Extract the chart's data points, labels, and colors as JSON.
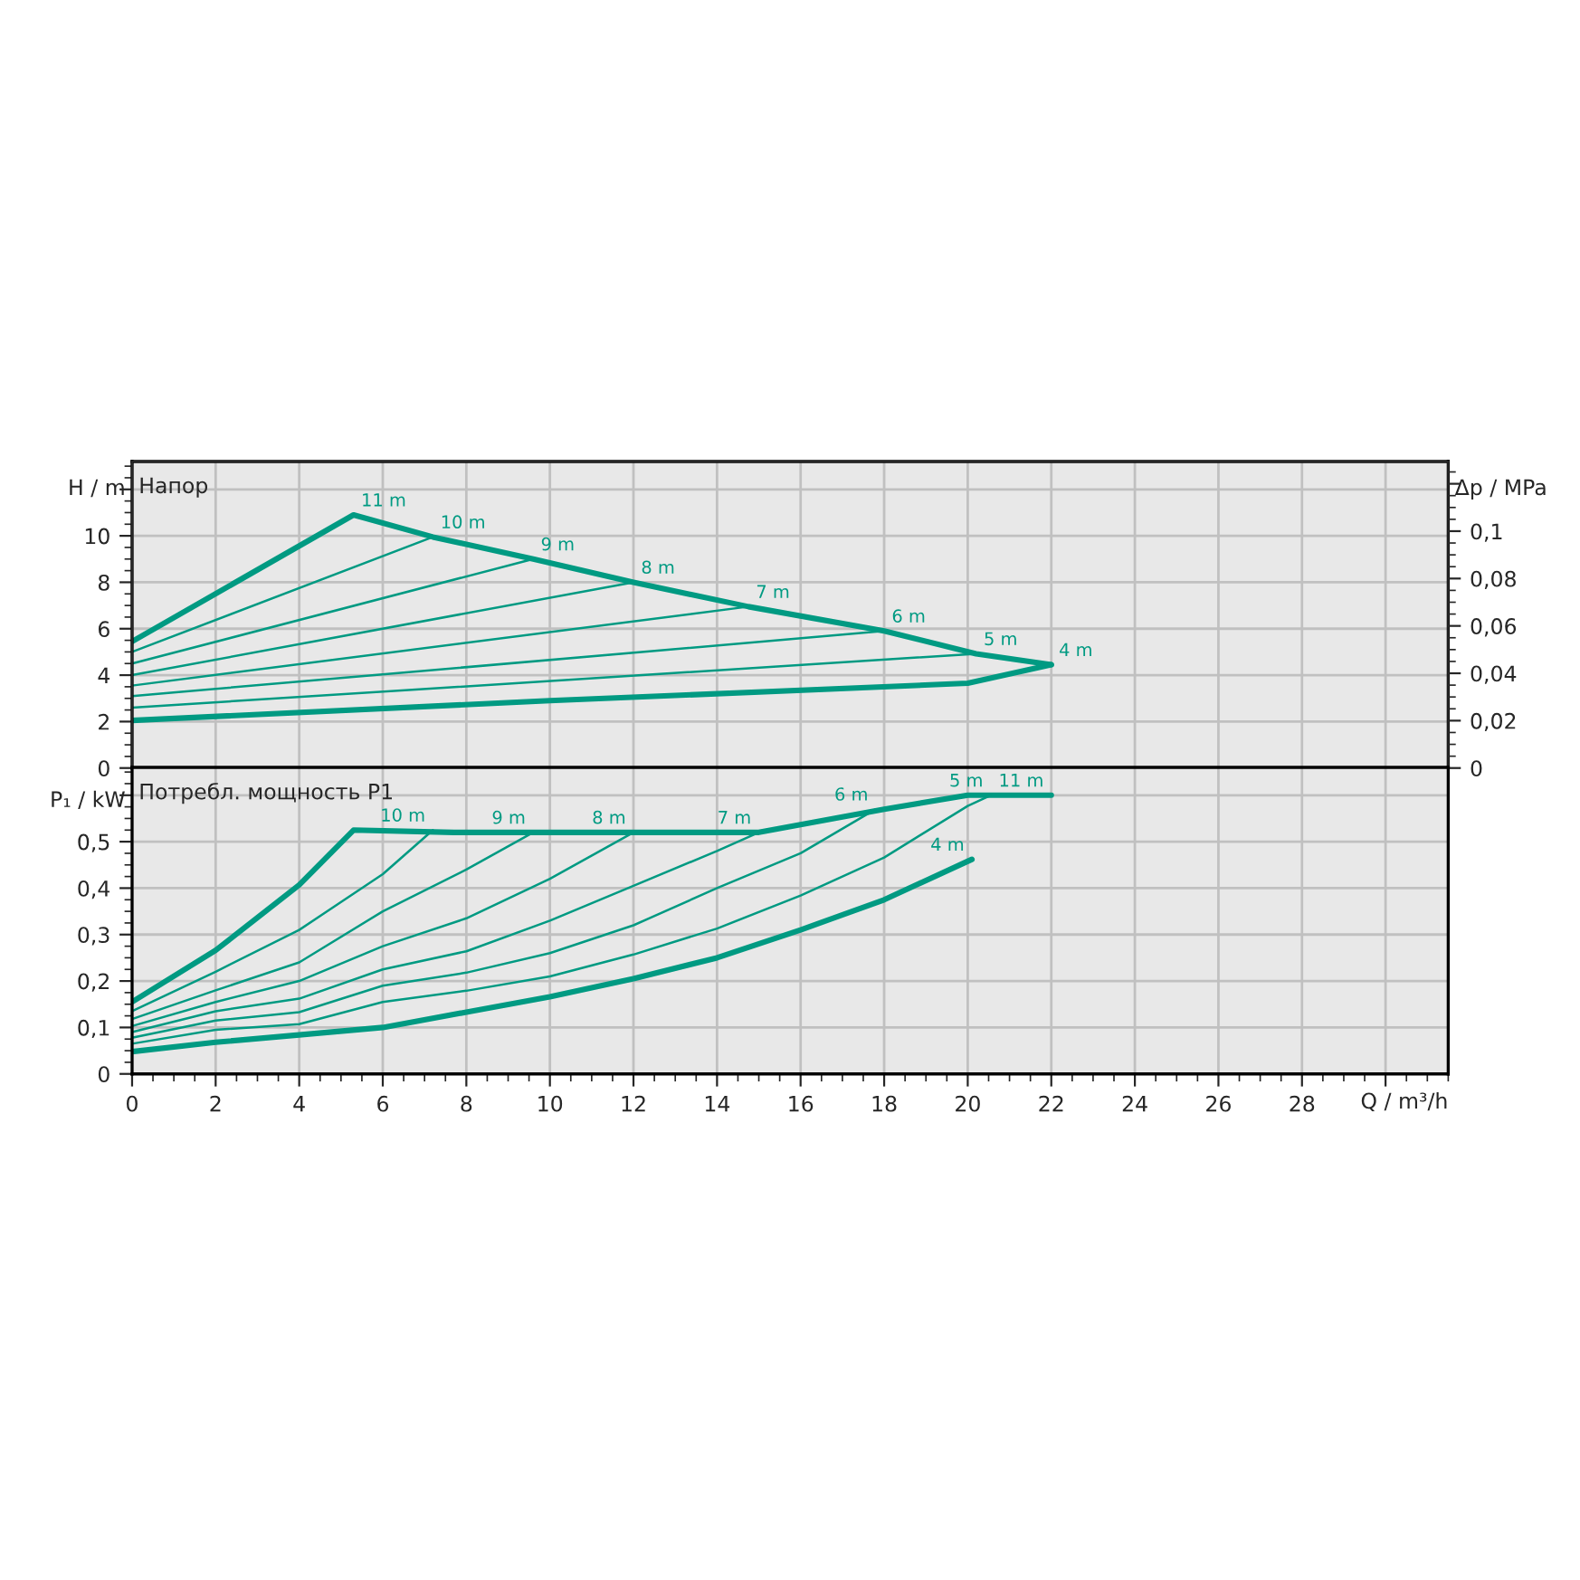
{
  "chart_data": [
    {
      "type": "line",
      "title": "Напор",
      "ylabel": "H / m",
      "y2label": "Δp / MPa",
      "xlim": [
        0,
        31.5
      ],
      "xticks": [
        0,
        2,
        4,
        6,
        8,
        10,
        12,
        14,
        16,
        18,
        20,
        22,
        24,
        26,
        28,
        30
      ],
      "ylim": [
        0,
        13.2
      ],
      "yticks": [
        0,
        2,
        4,
        6,
        8,
        10,
        {
          "value": 12,
          "label": null
        }
      ],
      "y2lim": [
        0,
        0.1294
      ],
      "y2ticks": [
        {
          "value": 0,
          "label": "0"
        },
        {
          "value": 0.02,
          "label": "0,02"
        },
        {
          "value": 0.04,
          "label": "0,04"
        },
        {
          "value": 0.06,
          "label": "0,06"
        },
        {
          "value": 0.08,
          "label": "0,08"
        },
        {
          "value": 0.1,
          "label": "0,1"
        },
        {
          "value": 0.12,
          "label": null
        }
      ],
      "tick_labels": "y",
      "grid": true,
      "line_style": "solid",
      "marker": "none",
      "series": [
        {
          "name": "11 m",
          "color": "#009a82",
          "x": [
            0,
            5.3,
            7.2,
            9.6,
            12,
            14.75,
            18,
            20.2,
            22
          ],
          "values": [
            5.45,
            10.9,
            9.95,
            9.0,
            8.0,
            6.95,
            5.9,
            4.92,
            4.45
          ]
        },
        {
          "name": "10 m",
          "color": "#009a82",
          "x": [
            0,
            7.2
          ],
          "values": [
            5.0,
            9.95
          ]
        },
        {
          "name": "9 m",
          "color": "#009a82",
          "x": [
            0,
            9.6
          ],
          "values": [
            4.5,
            9.0
          ]
        },
        {
          "name": "8 m",
          "color": "#009a82",
          "x": [
            0,
            12
          ],
          "values": [
            4.0,
            8.0
          ]
        },
        {
          "name": "7 m",
          "color": "#009a82",
          "x": [
            0,
            14.75
          ],
          "values": [
            3.55,
            6.95
          ]
        },
        {
          "name": "6 m",
          "color": "#009a82",
          "x": [
            0,
            18
          ],
          "values": [
            3.1,
            5.9
          ]
        },
        {
          "name": "5 m",
          "color": "#009a82",
          "x": [
            0,
            20.2
          ],
          "values": [
            2.6,
            4.92
          ]
        },
        {
          "name": "4 m",
          "color": "#009a82",
          "x": [
            0,
            10,
            20,
            22
          ],
          "values": [
            2.05,
            2.9,
            3.65,
            4.45
          ]
        }
      ]
    },
    {
      "type": "line",
      "title": "Потребл. мощность P1",
      "ylabel": "P₁ / kW",
      "xlabel": "Q / m³/h",
      "xlim": [
        0,
        31.5
      ],
      "xticks": [
        0,
        2,
        4,
        6,
        8,
        10,
        12,
        14,
        16,
        18,
        20,
        22,
        24,
        26,
        28,
        {
          "value": 30,
          "label": null
        }
      ],
      "ylim": [
        0,
        0.66
      ],
      "yticks": [
        {
          "value": 0,
          "label": "0"
        },
        {
          "value": 0.1,
          "label": "0,1"
        },
        {
          "value": 0.2,
          "label": "0,2"
        },
        {
          "value": 0.3,
          "label": "0,3"
        },
        {
          "value": 0.4,
          "label": "0,4"
        },
        {
          "value": 0.5,
          "label": "0,5"
        },
        {
          "value": 0.6,
          "label": null
        }
      ],
      "grid": true,
      "line_style": "solid",
      "marker": "none",
      "series": [
        {
          "name": "11 m",
          "color": "#009a82",
          "x": [
            0,
            2,
            4,
            5.3,
            7.7,
            15,
            18,
            20,
            22
          ],
          "values": [
            0.155,
            0.266,
            0.407,
            0.525,
            0.52,
            0.52,
            0.57,
            0.6,
            0.6
          ]
        },
        {
          "name": "10 m",
          "color": "#009a82",
          "x": [
            0,
            2,
            4,
            6,
            7.2
          ],
          "values": [
            0.135,
            0.22,
            0.31,
            0.43,
            0.525
          ]
        },
        {
          "name": "9 m",
          "color": "#009a82",
          "x": [
            0,
            2,
            4,
            6,
            8,
            9.6
          ],
          "values": [
            0.118,
            0.18,
            0.24,
            0.35,
            0.44,
            0.52
          ]
        },
        {
          "name": "8 m",
          "color": "#009a82",
          "x": [
            0,
            2,
            4,
            6,
            8,
            10,
            12
          ],
          "values": [
            0.103,
            0.155,
            0.2,
            0.275,
            0.335,
            0.42,
            0.52
          ]
        },
        {
          "name": "7 m",
          "color": "#009a82",
          "x": [
            0,
            2,
            4,
            6,
            8,
            10,
            12,
            14,
            15
          ],
          "values": [
            0.09,
            0.135,
            0.162,
            0.225,
            0.264,
            0.33,
            0.405,
            0.48,
            0.52
          ]
        },
        {
          "name": "6 m",
          "color": "#009a82",
          "x": [
            0,
            2,
            4,
            6,
            8,
            10,
            12,
            14,
            16,
            17.8
          ],
          "values": [
            0.078,
            0.115,
            0.133,
            0.19,
            0.218,
            0.26,
            0.32,
            0.4,
            0.475,
            0.57
          ]
        },
        {
          "name": "5 m",
          "color": "#009a82",
          "x": [
            0,
            2,
            4,
            6,
            8,
            10,
            12,
            14,
            16,
            18,
            20,
            20.55
          ],
          "values": [
            0.065,
            0.095,
            0.107,
            0.155,
            0.179,
            0.21,
            0.257,
            0.313,
            0.384,
            0.466,
            0.577,
            0.6
          ]
        },
        {
          "name": "4 m",
          "color": "#009a82",
          "x": [
            0,
            2,
            4,
            6,
            8,
            10,
            12,
            14,
            16,
            18,
            20.1
          ],
          "values": [
            0.048,
            0.068,
            0.084,
            0.1,
            0.133,
            0.166,
            0.205,
            0.25,
            0.31,
            0.375,
            0.462
          ]
        }
      ]
    }
  ]
}
